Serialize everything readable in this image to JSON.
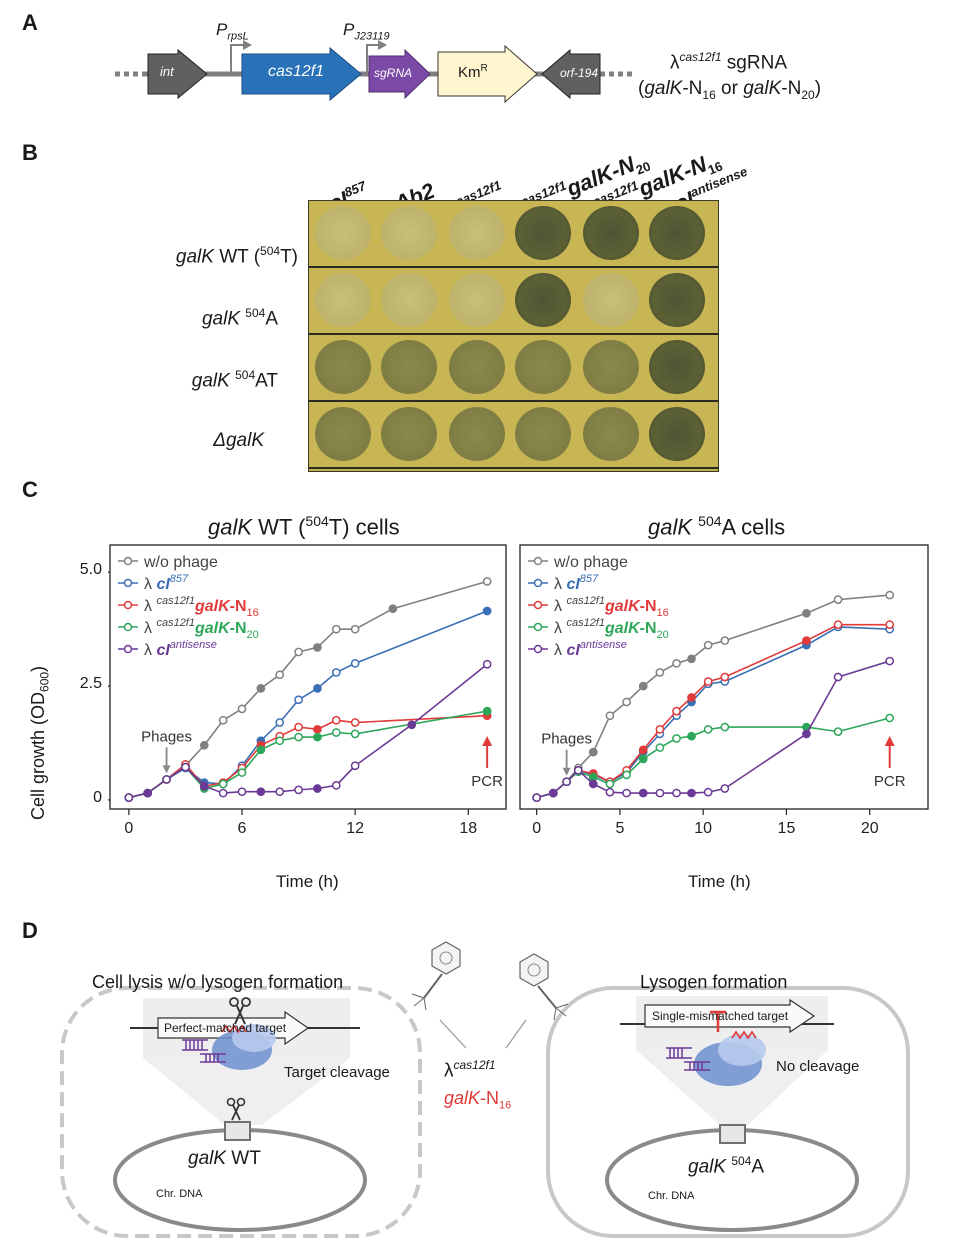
{
  "panels": {
    "a": "A",
    "b": "B",
    "c": "C",
    "d": "D"
  },
  "panel_a": {
    "promoter1": "P",
    "promoter1_sub": "rpsL",
    "promoter2": "P",
    "promoter2_sub": "J23119",
    "genes": [
      "int",
      "cas12f1",
      "sgRNA",
      "Km",
      "orf-194"
    ],
    "km_sup": "R",
    "phage_name": "λ",
    "phage_sup": "cas12f1",
    "phage_suffix": " sgRNA",
    "guide_line_pre": "(",
    "guide_gene1": "galK",
    "guide_mid1": "-N",
    "guide_sub1": "16",
    "guide_or": " or ",
    "guide_gene2": "galK",
    "guide_mid2": "-N",
    "guide_sub2": "20",
    "guide_close": ")"
  },
  "panel_b": {
    "columns": [
      {
        "pre": "λ ",
        "main": "cI",
        "sup": "857"
      },
      {
        "pre": "λ ",
        "main": "Δb2",
        "sup": ""
      },
      {
        "pre": "λ",
        "main": "",
        "sup": "cas12f1"
      },
      {
        "pre": "λ",
        "main": "galK-N",
        "sup": "cas12f1",
        "sub": "20"
      },
      {
        "pre": "λ",
        "main": "galK-N",
        "sup": "cas12f1",
        "sub": "16"
      },
      {
        "pre": "λ ",
        "main": "cI",
        "sup": "antisense"
      }
    ],
    "rows": [
      {
        "gene": "galK",
        "rest": " WT (",
        "sup": "504",
        "tail": "T)"
      },
      {
        "gene": "galK",
        "rest": " ",
        "sup": "504",
        "tail": "A"
      },
      {
        "gene": "galK",
        "rest": " ",
        "sup": "504",
        "tail": "AT"
      },
      {
        "gene": "ΔgalK",
        "rest": "",
        "sup": "",
        "tail": ""
      }
    ],
    "plaque_states": [
      [
        "faint",
        "faint",
        "faint",
        "dark",
        "dark",
        "dark"
      ],
      [
        "faint",
        "faint",
        "faint",
        "dark",
        "faint",
        "dark"
      ],
      [
        "mid",
        "mid",
        "mid",
        "mid",
        "mid",
        "dark"
      ],
      [
        "mid",
        "mid",
        "mid",
        "mid",
        "mid",
        "dark"
      ]
    ]
  },
  "panel_c": {
    "ylabel": "Cell growth (OD",
    "ylabel_sub": "600",
    "ylabel_close": ")",
    "xlabel": "Time (h)",
    "legend": [
      {
        "pre": "w/o phage",
        "sup": "",
        "main": "",
        "sub": ""
      },
      {
        "pre": "λ ",
        "sup": "",
        "main": "cI",
        "msup": "857",
        "sub": ""
      },
      {
        "pre": "λ ",
        "sup": "cas12f1",
        "main": "galK",
        "mid": "-N",
        "sub": "16"
      },
      {
        "pre": "λ ",
        "sup": "cas12f1",
        "main": "galK",
        "mid": "-N",
        "sub": "20"
      },
      {
        "pre": "λ ",
        "sup": "",
        "main": "cI",
        "msup": "antisense",
        "sub": ""
      }
    ],
    "annot_phages": "Phages",
    "annot_pcr": "PCR",
    "colors": {
      "gray": "#808080",
      "blue": "#3a6fb5",
      "red": "#e03a3a",
      "green": "#2ea65a",
      "purple": "#6b3a96"
    }
  },
  "chart_data": [
    {
      "type": "line",
      "title_gene": "galK",
      "title": " WT (",
      "title_sup": "504",
      "title_tail": "T) cells",
      "xlabel": "Time (h)",
      "ylabel": "Cell growth (OD600)",
      "xlim": [
        -1,
        20
      ],
      "ylim": [
        -0.2,
        5.6
      ],
      "xticks": [
        0,
        6,
        12,
        18
      ],
      "yticks": [
        0,
        2.5,
        5.0
      ],
      "ytick_labels": [
        "0",
        "2.5",
        "5.0"
      ],
      "series": [
        {
          "name": "w/o phage",
          "color": "#808080",
          "x": [
            0,
            1,
            2,
            3,
            4,
            5,
            6,
            7,
            8,
            9,
            10,
            11,
            12,
            14,
            19
          ],
          "y": [
            0.05,
            0.15,
            0.45,
            0.75,
            1.2,
            1.75,
            2.0,
            2.45,
            2.75,
            3.25,
            3.35,
            3.75,
            3.75,
            4.2,
            4.8
          ]
        },
        {
          "name": "λ cI857",
          "color": "#3a6fb5",
          "x": [
            0,
            1,
            2,
            3,
            4,
            5,
            6,
            7,
            8,
            9,
            10,
            11,
            12,
            19
          ],
          "y": [
            0.05,
            0.15,
            0.45,
            0.7,
            0.38,
            0.35,
            0.75,
            1.3,
            1.7,
            2.2,
            2.45,
            2.8,
            3.0,
            4.15
          ]
        },
        {
          "name": "λ cas12f1 galK-N16",
          "color": "#e03a3a",
          "x": [
            0,
            1,
            2,
            3,
            4,
            5,
            6,
            7,
            8,
            9,
            10,
            11,
            12,
            19
          ],
          "y": [
            0.05,
            0.15,
            0.45,
            0.78,
            0.3,
            0.38,
            0.7,
            1.2,
            1.4,
            1.6,
            1.55,
            1.75,
            1.7,
            1.85
          ]
        },
        {
          "name": "λ cas12f1 galK-N20",
          "color": "#2ea65a",
          "x": [
            0,
            1,
            2,
            3,
            4,
            5,
            6,
            7,
            8,
            9,
            10,
            11,
            12,
            19
          ],
          "y": [
            0.05,
            0.15,
            0.45,
            0.72,
            0.25,
            0.35,
            0.6,
            1.1,
            1.3,
            1.38,
            1.38,
            1.48,
            1.45,
            1.95
          ]
        },
        {
          "name": "λ cIantisense",
          "color": "#6b3a96",
          "x": [
            0,
            1,
            2,
            3,
            4,
            5,
            6,
            7,
            8,
            9,
            10,
            11,
            12,
            15,
            19
          ],
          "y": [
            0.05,
            0.15,
            0.45,
            0.72,
            0.3,
            0.15,
            0.18,
            0.18,
            0.18,
            0.22,
            0.25,
            0.32,
            0.75,
            1.65,
            2.98
          ]
        }
      ]
    },
    {
      "type": "line",
      "title_gene": "galK",
      "title": " ",
      "title_sup": "504",
      "title_tail": "A cells",
      "xlabel": "Time (h)",
      "ylabel": "",
      "xlim": [
        -1,
        23.5
      ],
      "ylim": [
        -0.2,
        5.6
      ],
      "xticks": [
        0,
        5,
        10,
        15,
        20
      ],
      "yticks": [],
      "series": [
        {
          "name": "w/o phage",
          "color": "#808080",
          "x": [
            0,
            1,
            1.8,
            2.5,
            3.4,
            4.4,
            5.4,
            6.4,
            7.4,
            8.4,
            9.3,
            10.3,
            11.3,
            16.2,
            18.1,
            21.2
          ],
          "y": [
            0.05,
            0.15,
            0.4,
            0.7,
            1.05,
            1.85,
            2.15,
            2.5,
            2.8,
            3.0,
            3.1,
            3.4,
            3.5,
            4.1,
            4.4,
            4.5
          ]
        },
        {
          "name": "λ cI857",
          "color": "#3a6fb5",
          "x": [
            0,
            1,
            1.8,
            2.5,
            3.4,
            4.4,
            5.4,
            6.4,
            7.4,
            8.4,
            9.3,
            10.3,
            11.3,
            16.2,
            18.1,
            21.2
          ],
          "y": [
            0.05,
            0.15,
            0.4,
            0.65,
            0.55,
            0.4,
            0.6,
            1.05,
            1.45,
            1.85,
            2.15,
            2.55,
            2.6,
            3.4,
            3.8,
            3.75
          ]
        },
        {
          "name": "λ cas12f1 galK-N16",
          "color": "#e03a3a",
          "x": [
            0,
            1,
            1.8,
            2.5,
            3.4,
            4.4,
            5.4,
            6.4,
            7.4,
            8.4,
            9.3,
            10.3,
            11.3,
            16.2,
            18.1,
            21.2
          ],
          "y": [
            0.05,
            0.15,
            0.4,
            0.65,
            0.58,
            0.4,
            0.65,
            1.1,
            1.55,
            1.95,
            2.25,
            2.6,
            2.7,
            3.5,
            3.85,
            3.85
          ]
        },
        {
          "name": "λ cas12f1 galK-N20",
          "color": "#2ea65a",
          "x": [
            0,
            1,
            1.8,
            2.5,
            3.4,
            4.4,
            5.4,
            6.4,
            7.4,
            8.4,
            9.3,
            10.3,
            11.3,
            16.2,
            18.1,
            21.2
          ],
          "y": [
            0.05,
            0.15,
            0.4,
            0.62,
            0.5,
            0.35,
            0.55,
            0.9,
            1.15,
            1.35,
            1.4,
            1.55,
            1.6,
            1.6,
            1.5,
            1.8
          ]
        },
        {
          "name": "λ cIantisense",
          "color": "#6b3a96",
          "x": [
            0,
            1,
            1.8,
            2.5,
            3.4,
            4.4,
            5.4,
            6.4,
            7.4,
            8.4,
            9.3,
            10.3,
            11.3,
            16.2,
            18.1,
            21.2
          ],
          "y": [
            0.05,
            0.15,
            0.4,
            0.65,
            0.35,
            0.17,
            0.15,
            0.15,
            0.15,
            0.15,
            0.15,
            0.17,
            0.25,
            1.45,
            2.7,
            3.05
          ]
        }
      ]
    }
  ],
  "panel_d": {
    "left_title": "Cell lysis w/o lysogen formation",
    "right_title": "Lysogen formation",
    "left_target": "Perfect-matched target",
    "right_target": "Single-mismatched target",
    "left_action": "Target cleavage",
    "right_action": "No cleavage",
    "left_gene_main": "galK",
    "left_gene_rest": " WT",
    "right_gene_main": "galK",
    "right_gene_sup": "504",
    "right_gene_rest": "A",
    "chr_dna": "Chr. DNA",
    "center_phage": "λ",
    "center_sup": "cas12f1",
    "center_gene": "galK",
    "center_suffix": "-N",
    "center_sub": "16"
  }
}
